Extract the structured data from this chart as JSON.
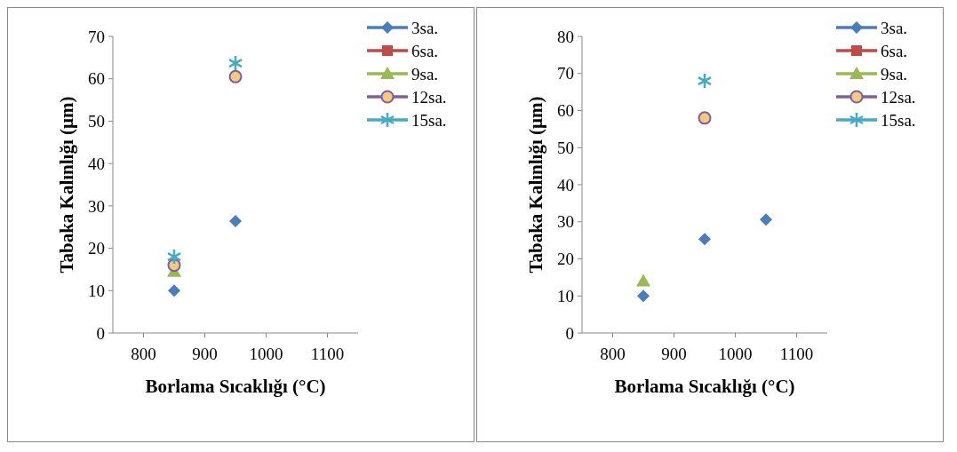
{
  "chart_data": [
    {
      "type": "scatter",
      "xlabel": "Borlama Sıcaklığı (°C)",
      "ylabel": "Tabaka Kalınlığı (µm)",
      "xlim": [
        750,
        1150
      ],
      "xticks": [
        800,
        900,
        1000,
        1100
      ],
      "ylim": [
        0,
        70
      ],
      "yticks": [
        0,
        10,
        20,
        30,
        40,
        50,
        60,
        70
      ],
      "x": [
        850,
        950
      ],
      "legend": "top right",
      "series": [
        {
          "name": "3sa.",
          "color": "#4a7ebb",
          "marker": "diamond",
          "values": [
            10,
            26.4
          ]
        },
        {
          "name": "6sa.",
          "color": "#be4b48",
          "marker": "square",
          "values": [
            null,
            null
          ]
        },
        {
          "name": "9sa.",
          "color": "#98b954",
          "marker": "triangle",
          "values": [
            14.5,
            null
          ]
        },
        {
          "name": "12sa.",
          "color": "#7d60a0",
          "marker": "circle",
          "values": [
            16,
            60.5
          ]
        },
        {
          "name": "15sa.",
          "color": "#46aac5",
          "marker": "cross",
          "values": [
            18,
            63.7
          ]
        }
      ]
    },
    {
      "type": "scatter",
      "xlabel": "Borlama Sıcaklığı (°C)",
      "ylabel": "Tabaka Kalınlığı (µm)",
      "xlim": [
        750,
        1150
      ],
      "xticks": [
        800,
        900,
        1000,
        1100
      ],
      "ylim": [
        0,
        80
      ],
      "yticks": [
        0,
        10,
        20,
        30,
        40,
        50,
        60,
        70,
        80
      ],
      "x": [
        850,
        950,
        1050
      ],
      "legend": "top right",
      "series": [
        {
          "name": "3sa.",
          "color": "#4a7ebb",
          "marker": "diamond",
          "values": [
            10,
            25.3,
            30.6
          ]
        },
        {
          "name": "6sa.",
          "color": "#be4b48",
          "marker": "square",
          "values": [
            null,
            null,
            null
          ]
        },
        {
          "name": "9sa.",
          "color": "#98b954",
          "marker": "triangle",
          "values": [
            14,
            null,
            null
          ]
        },
        {
          "name": "12sa.",
          "color": "#7d60a0",
          "marker": "circle",
          "values": [
            null,
            58,
            null
          ]
        },
        {
          "name": "15sa.",
          "color": "#46aac5",
          "marker": "cross",
          "values": [
            null,
            68,
            null
          ]
        }
      ]
    }
  ]
}
